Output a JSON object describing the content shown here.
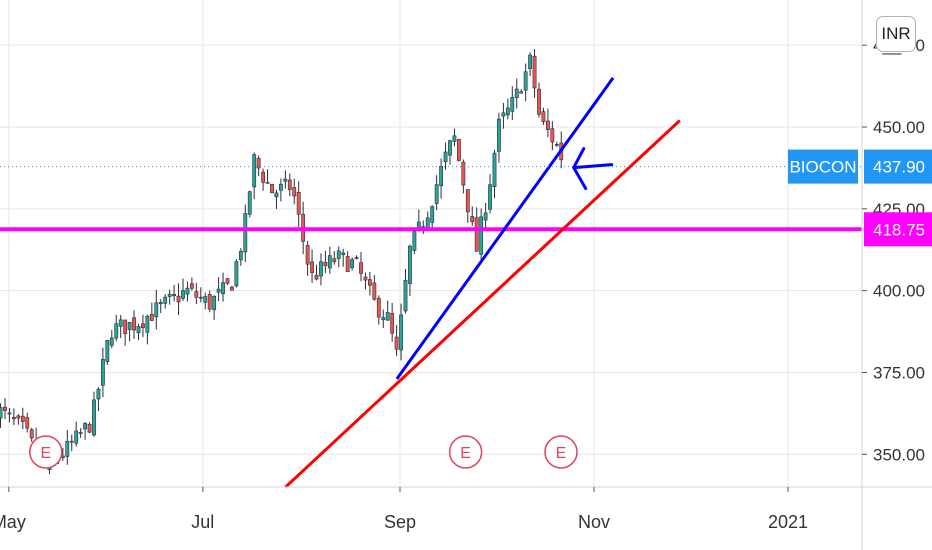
{
  "currency_label": "INR",
  "symbol": "BIOCON",
  "last_price_label": "437.90",
  "hline_label": "418.75",
  "colors": {
    "up": "#26a69a",
    "down": "#ef5350",
    "wick": "#2a2e39",
    "magenta": "#ff00ff",
    "blue_tag": "#2196f3",
    "blue_line": "#0000ff",
    "red_line": "#ff0000",
    "earnings": "#e0435a",
    "grid": "#e6e6e6"
  },
  "chart_data": {
    "type": "candlestick",
    "ylim": [
      340,
      480
    ],
    "y_ticks": [
      350,
      375,
      400,
      425,
      450,
      475
    ],
    "y_tick_labels": [
      "350.00",
      "375.00",
      "400.00",
      "425.00",
      "450.00",
      "4__.00"
    ],
    "x_ticks": [
      "May",
      "Jul",
      "Sep",
      "Nov",
      "2021"
    ],
    "x_tick_dates": [
      "2020-05-01",
      "2020-07-01",
      "2020-09-01",
      "2020-11-01",
      "2021-01-01"
    ],
    "last_price": 437.9,
    "horizontal_line": 418.75,
    "closes": [
      {
        "date": "2020-04-27",
        "close": 364
      },
      {
        "date": "2020-05-06",
        "close": 357
      },
      {
        "date": "2020-05-12",
        "close": 346
      },
      {
        "date": "2020-05-20",
        "close": 352
      },
      {
        "date": "2020-05-27",
        "close": 360
      },
      {
        "date": "2020-06-02",
        "close": 388
      },
      {
        "date": "2020-06-10",
        "close": 390
      },
      {
        "date": "2020-06-18",
        "close": 395
      },
      {
        "date": "2020-06-26",
        "close": 400
      },
      {
        "date": "2020-07-03",
        "close": 396
      },
      {
        "date": "2020-07-10",
        "close": 402
      },
      {
        "date": "2020-07-14",
        "close": 418
      },
      {
        "date": "2020-07-17",
        "close": 440
      },
      {
        "date": "2020-07-23",
        "close": 430
      },
      {
        "date": "2020-07-29",
        "close": 432
      },
      {
        "date": "2020-08-04",
        "close": 404
      },
      {
        "date": "2020-08-12",
        "close": 410
      },
      {
        "date": "2020-08-18",
        "close": 408
      },
      {
        "date": "2020-08-24",
        "close": 396
      },
      {
        "date": "2020-08-28",
        "close": 392
      },
      {
        "date": "2020-08-31",
        "close": 380
      },
      {
        "date": "2020-09-04",
        "close": 412
      },
      {
        "date": "2020-09-10",
        "close": 425
      },
      {
        "date": "2020-09-15",
        "close": 440
      },
      {
        "date": "2020-09-18",
        "close": 447
      },
      {
        "date": "2020-09-22",
        "close": 428
      },
      {
        "date": "2020-09-25",
        "close": 412
      },
      {
        "date": "2020-09-29",
        "close": 432
      },
      {
        "date": "2020-10-02",
        "close": 450
      },
      {
        "date": "2020-10-07",
        "close": 458
      },
      {
        "date": "2020-10-12",
        "close": 470
      },
      {
        "date": "2020-10-15",
        "close": 452
      },
      {
        "date": "2020-10-20",
        "close": 445
      },
      {
        "date": "2020-10-23",
        "close": 437.9
      }
    ],
    "earnings_markers": [
      {
        "label": "E",
        "date": "2020-05-12"
      },
      {
        "label": "E",
        "date": "2020-09-21"
      },
      {
        "label": "E",
        "date": "2020-10-21"
      }
    ],
    "trendlines": [
      {
        "color": "blue",
        "from": {
          "date": "2020-08-31",
          "value": 373
        },
        "to": {
          "date": "2020-11-07",
          "value": 465
        }
      },
      {
        "color": "red",
        "from": {
          "date": "2020-07-27",
          "value": 340
        },
        "to": {
          "date": "2020-11-28",
          "value": 452
        }
      }
    ],
    "x_range": [
      "2020-04-27",
      "2021-01-31"
    ]
  }
}
